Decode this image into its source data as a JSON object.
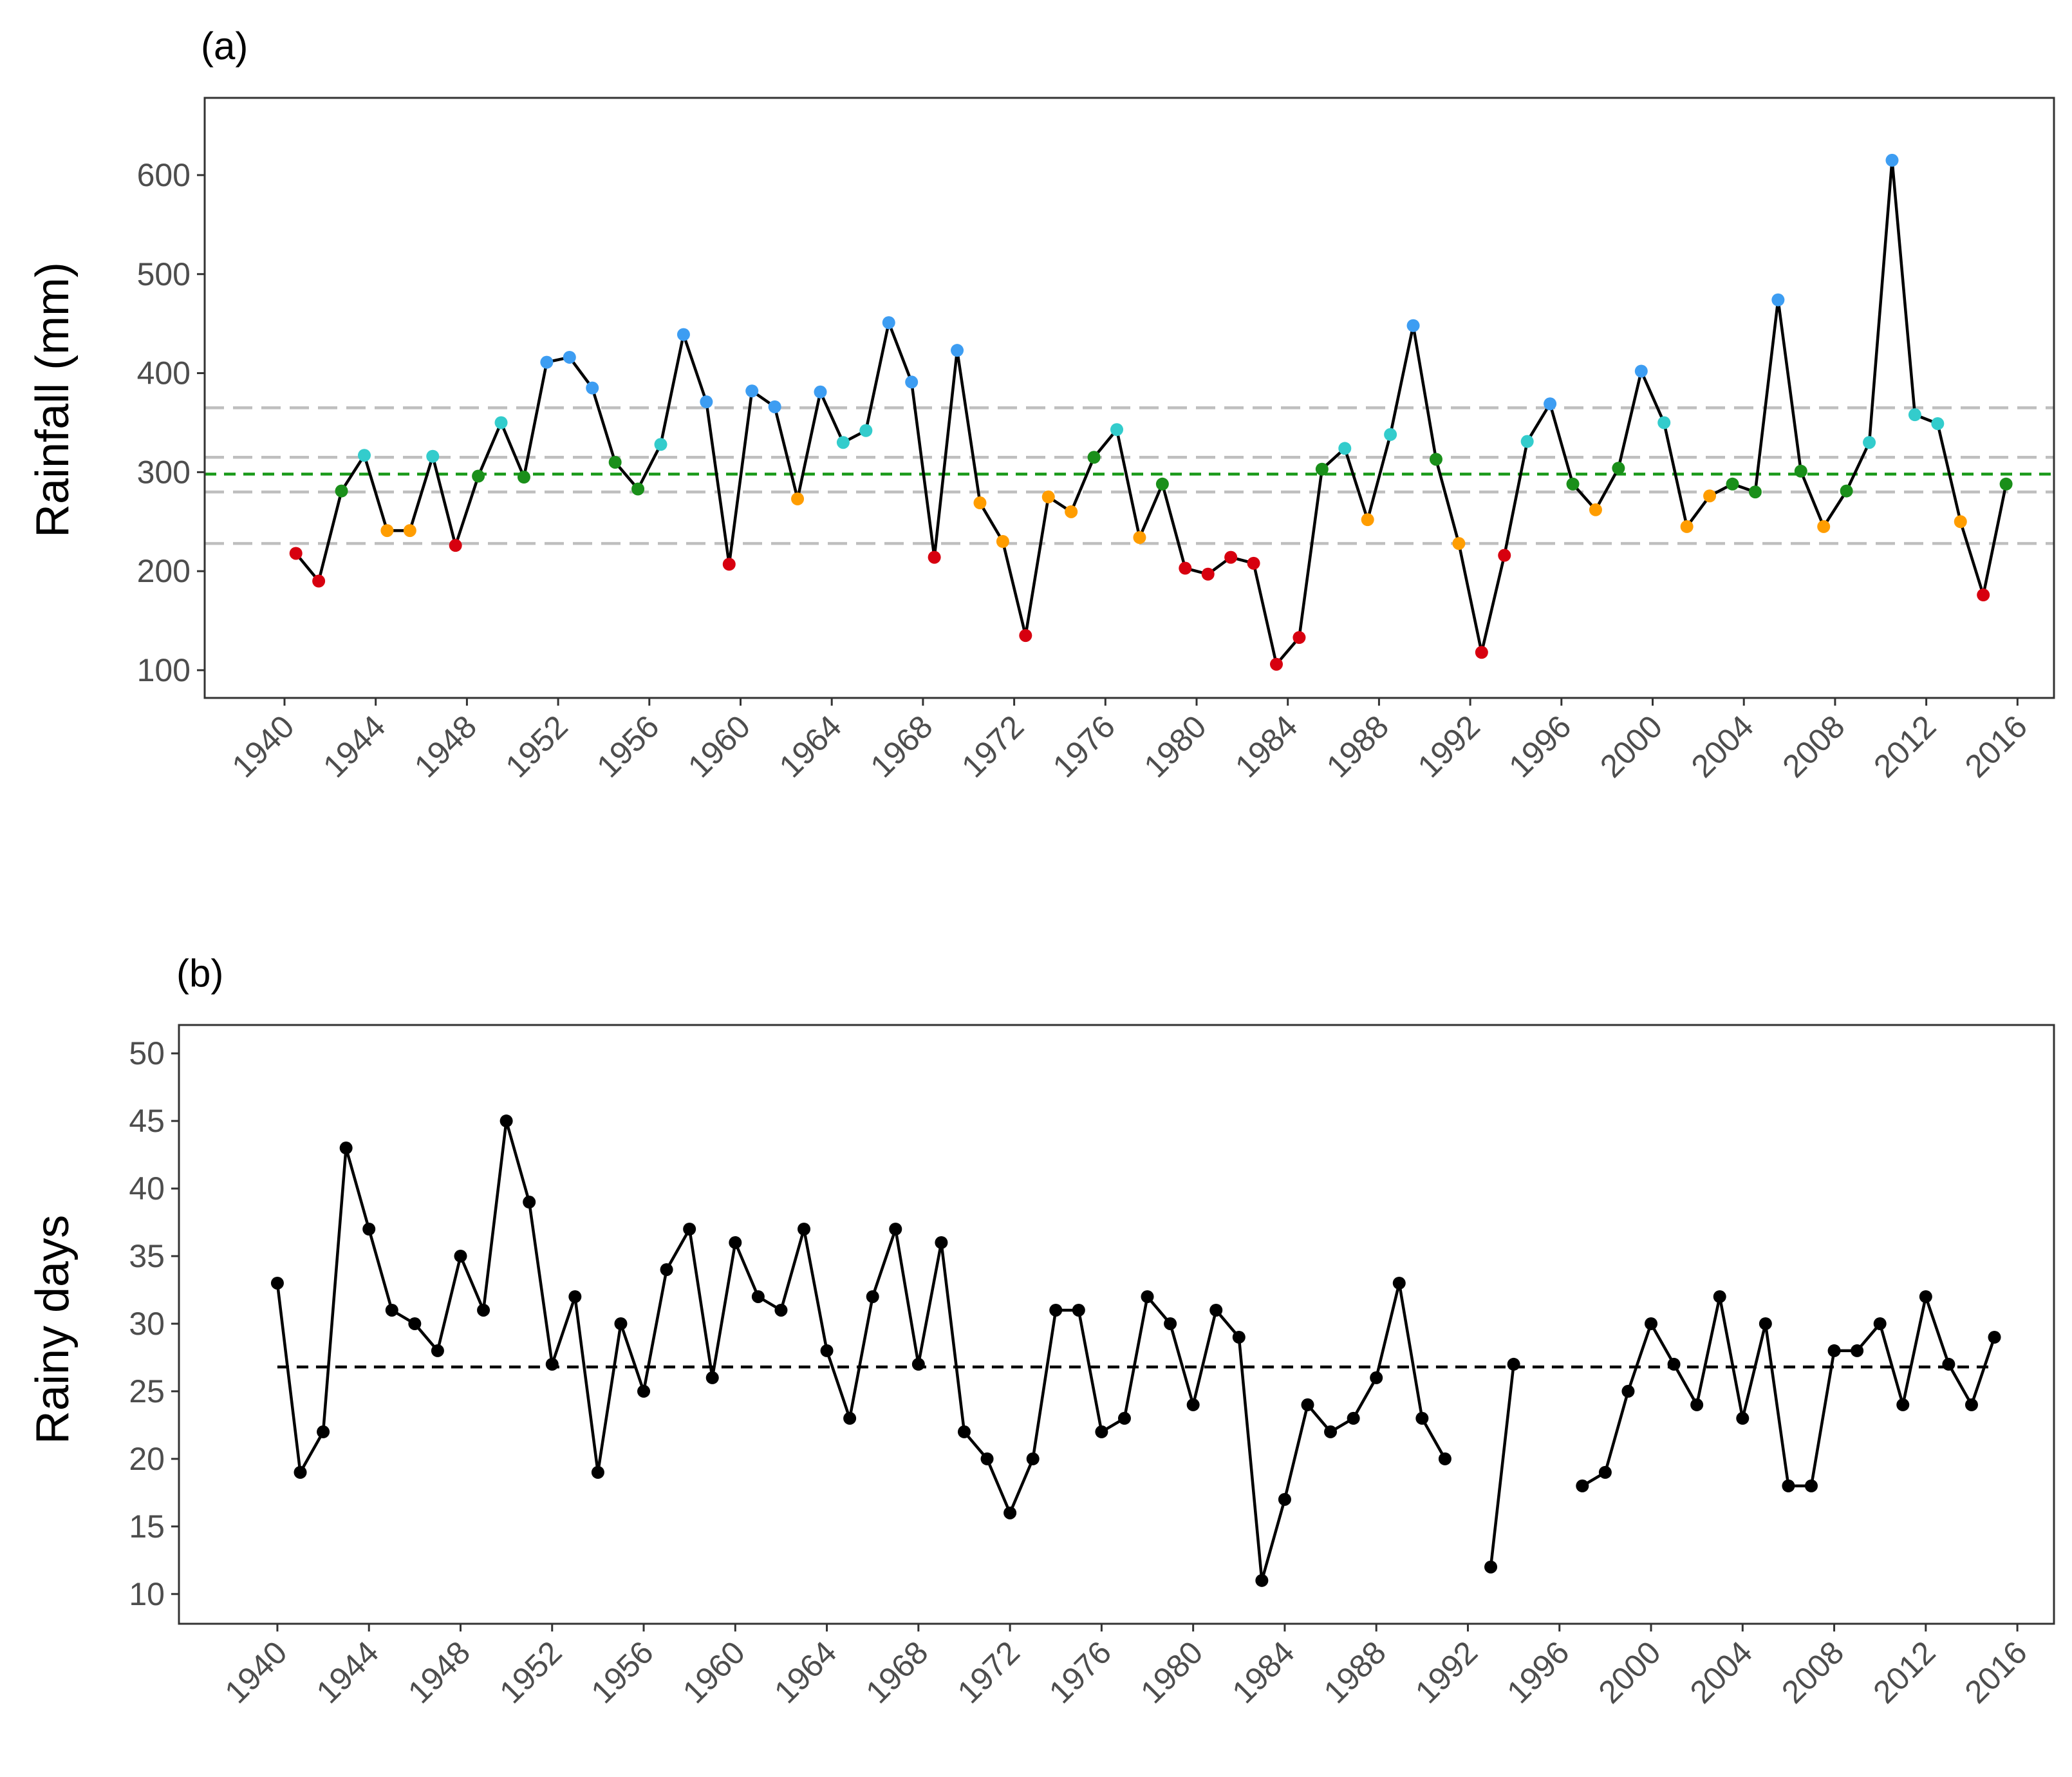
{
  "chart_data": [
    {
      "type": "line",
      "panel_label": "(a)",
      "xlabel": "",
      "ylabel": "Rainfall (mm)",
      "xlim": [
        1936.5,
        2017.6
      ],
      "ylim": [
        72,
        678
      ],
      "x_ticks": [
        1940,
        1944,
        1948,
        1952,
        1956,
        1960,
        1964,
        1968,
        1972,
        1976,
        1980,
        1984,
        1988,
        1992,
        1996,
        2000,
        2004,
        2008,
        2012,
        2016
      ],
      "y_ticks": [
        100,
        200,
        300,
        400,
        500,
        600
      ],
      "grid": false,
      "x_offset_years": 0.5,
      "reference_lines": [
        {
          "value": 365,
          "color": "#bfbfbf",
          "style": "long-dash"
        },
        {
          "value": 315,
          "color": "#bfbfbf",
          "style": "long-dash"
        },
        {
          "value": 298,
          "color": "#1a9a1a",
          "style": "dash"
        },
        {
          "value": 280,
          "color": "#bfbfbf",
          "style": "long-dash"
        },
        {
          "value": 228,
          "color": "#bfbfbf",
          "style": "long-dash"
        }
      ],
      "category_colors": {
        "very_dry": "#d7000f",
        "dry": "#ff9d00",
        "normal": "#1a8f1a",
        "wet": "#33cccc",
        "very_wet": "#3d9df2"
      },
      "x": [
        1940,
        1941,
        1942,
        1943,
        1944,
        1945,
        1946,
        1947,
        1948,
        1949,
        1950,
        1951,
        1952,
        1953,
        1954,
        1955,
        1956,
        1957,
        1958,
        1959,
        1960,
        1961,
        1962,
        1963,
        1964,
        1965,
        1966,
        1967,
        1968,
        1969,
        1970,
        1971,
        1972,
        1973,
        1974,
        1975,
        1976,
        1977,
        1978,
        1979,
        1980,
        1981,
        1982,
        1983,
        1984,
        1985,
        1986,
        1987,
        1988,
        1989,
        1990,
        1991,
        1992,
        1993,
        1994,
        1995,
        1996,
        1997,
        1998,
        1999,
        2000,
        2001,
        2002,
        2003,
        2004,
        2005,
        2006,
        2007,
        2008,
        2009,
        2010,
        2011,
        2012,
        2013,
        2014,
        2015
      ],
      "values": [
        218,
        190,
        281,
        317,
        241,
        241,
        316,
        226,
        296,
        350,
        295,
        411,
        416,
        385,
        310,
        283,
        328,
        439,
        371,
        207,
        382,
        366,
        273,
        381,
        330,
        342,
        451,
        391,
        214,
        423,
        269,
        230,
        135,
        275,
        260,
        315,
        343,
        234,
        288,
        203,
        197,
        214,
        208,
        106,
        133,
        303,
        324,
        252,
        338,
        448,
        313,
        228,
        118,
        216,
        331,
        369,
        288,
        262,
        304,
        402,
        350,
        245,
        276,
        288,
        280,
        474,
        301,
        245,
        281,
        330,
        615,
        358,
        349,
        250,
        176,
        288
      ],
      "categories": [
        "very_dry",
        "very_dry",
        "normal",
        "wet",
        "dry",
        "dry",
        "wet",
        "very_dry",
        "normal",
        "wet",
        "normal",
        "very_wet",
        "very_wet",
        "very_wet",
        "normal",
        "normal",
        "wet",
        "very_wet",
        "very_wet",
        "very_dry",
        "very_wet",
        "very_wet",
        "dry",
        "very_wet",
        "wet",
        "wet",
        "very_wet",
        "very_wet",
        "very_dry",
        "very_wet",
        "dry",
        "dry",
        "very_dry",
        "dry",
        "dry",
        "normal",
        "wet",
        "dry",
        "normal",
        "very_dry",
        "very_dry",
        "very_dry",
        "very_dry",
        "very_dry",
        "very_dry",
        "normal",
        "wet",
        "dry",
        "wet",
        "very_wet",
        "normal",
        "dry",
        "very_dry",
        "very_dry",
        "wet",
        "very_wet",
        "normal",
        "dry",
        "normal",
        "very_wet",
        "wet",
        "dry",
        "dry",
        "normal",
        "normal",
        "very_wet",
        "normal",
        "dry",
        "normal",
        "wet",
        "very_wet",
        "wet",
        "wet",
        "dry",
        "very_dry",
        "normal"
      ]
    },
    {
      "type": "line",
      "panel_label": "(b)",
      "xlabel": "",
      "ylabel": "Rainy days",
      "xlim": [
        1935.7,
        2017.6
      ],
      "ylim": [
        7.8,
        52.1
      ],
      "x_ticks": [
        1940,
        1944,
        1948,
        1952,
        1956,
        1960,
        1964,
        1968,
        1972,
        1976,
        1980,
        1984,
        1988,
        1992,
        1996,
        2000,
        2004,
        2008,
        2012,
        2016
      ],
      "y_ticks": [
        10,
        15,
        20,
        25,
        30,
        35,
        40,
        45,
        50
      ],
      "grid": false,
      "x_offset_years": 0,
      "reference_lines": [
        {
          "value": 26.8,
          "color": "#000000",
          "style": "dash",
          "x_range": [
            1940,
            2015
          ]
        }
      ],
      "x": [
        1940,
        1941,
        1942,
        1943,
        1944,
        1945,
        1946,
        1947,
        1948,
        1949,
        1950,
        1951,
        1952,
        1953,
        1954,
        1955,
        1956,
        1957,
        1958,
        1959,
        1960,
        1961,
        1962,
        1963,
        1964,
        1965,
        1966,
        1967,
        1968,
        1969,
        1970,
        1971,
        1972,
        1973,
        1974,
        1975,
        1976,
        1977,
        1978,
        1979,
        1980,
        1981,
        1982,
        1983,
        1984,
        1985,
        1986,
        1987,
        1988,
        1989,
        1990,
        1991,
        1992,
        1993,
        1994,
        1995,
        1996,
        1997,
        1998,
        1999,
        2000,
        2001,
        2002,
        2003,
        2004,
        2005,
        2006,
        2007,
        2008,
        2009,
        2010,
        2011,
        2012,
        2013,
        2014,
        2015
      ],
      "values": [
        33,
        19,
        22,
        43,
        37,
        31,
        30,
        28,
        35,
        31,
        45,
        39,
        27,
        32,
        19,
        30,
        25,
        34,
        37,
        26,
        36,
        32,
        31,
        37,
        28,
        23,
        32,
        37,
        27,
        36,
        22,
        20,
        16,
        20,
        31,
        31,
        22,
        23,
        32,
        30,
        24,
        31,
        29,
        11,
        17,
        24,
        22,
        23,
        26,
        33,
        23,
        20,
        null,
        12,
        27,
        null,
        null,
        18,
        19,
        25,
        30,
        27,
        24,
        32,
        23,
        30,
        18,
        18,
        28,
        28,
        30,
        24,
        32,
        27,
        24,
        29
      ]
    }
  ]
}
